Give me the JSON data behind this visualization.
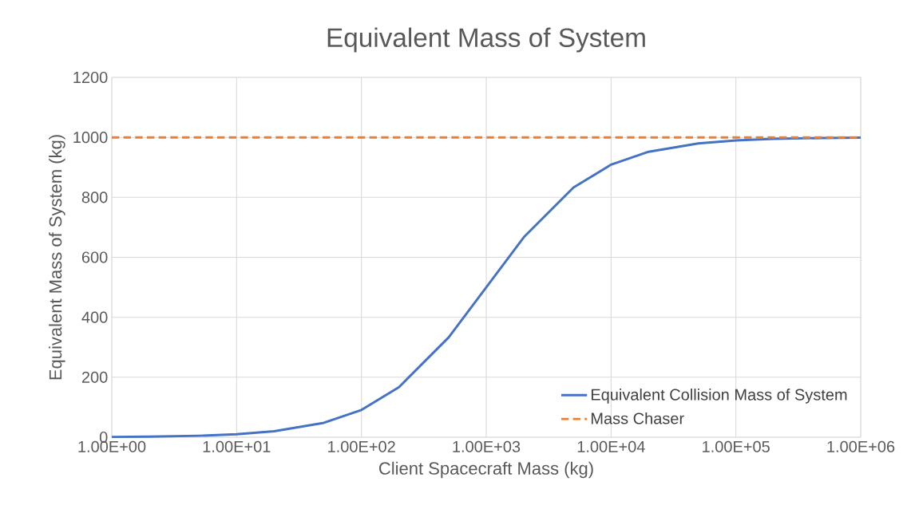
{
  "chart_data": {
    "type": "line",
    "title": "Equivalent Mass of System",
    "xlabel": "Client Spacecraft Mass (kg)",
    "ylabel": "Equivalent Mass of System (kg)",
    "log": "x",
    "xlim": [
      1,
      1000000
    ],
    "ylim": [
      0,
      1200
    ],
    "xticks": [
      {
        "value": 1,
        "label": "1.00E+00"
      },
      {
        "value": 10,
        "label": "1.00E+01"
      },
      {
        "value": 100,
        "label": "1.00E+02"
      },
      {
        "value": 1000,
        "label": "1.00E+03"
      },
      {
        "value": 10000,
        "label": "1.00E+04"
      },
      {
        "value": 100000,
        "label": "1.00E+05"
      },
      {
        "value": 1000000,
        "label": "1.00E+06"
      }
    ],
    "yticks": [
      0,
      200,
      400,
      600,
      800,
      1000,
      1200
    ],
    "grid": true,
    "legend": "bottom right",
    "marker": "none",
    "series": [
      {
        "name": "Equivalent Collision Mass of System",
        "color": "#4472c4",
        "line_style": "solid",
        "x": [
          1,
          2,
          5,
          10,
          20,
          50,
          100,
          200,
          500,
          1000,
          2000,
          5000,
          10000,
          20000,
          50000,
          100000,
          200000,
          500000,
          1000000
        ],
        "values": [
          1,
          2,
          5,
          10,
          20,
          48,
          91,
          167,
          333,
          500,
          667,
          833,
          909,
          952,
          980,
          990,
          995,
          998,
          999
        ]
      },
      {
        "name": "Mass Chaser",
        "color": "#ed7d31",
        "line_style": "dashed",
        "x": [
          1,
          1000000
        ],
        "values": [
          1000,
          1000
        ]
      }
    ]
  }
}
